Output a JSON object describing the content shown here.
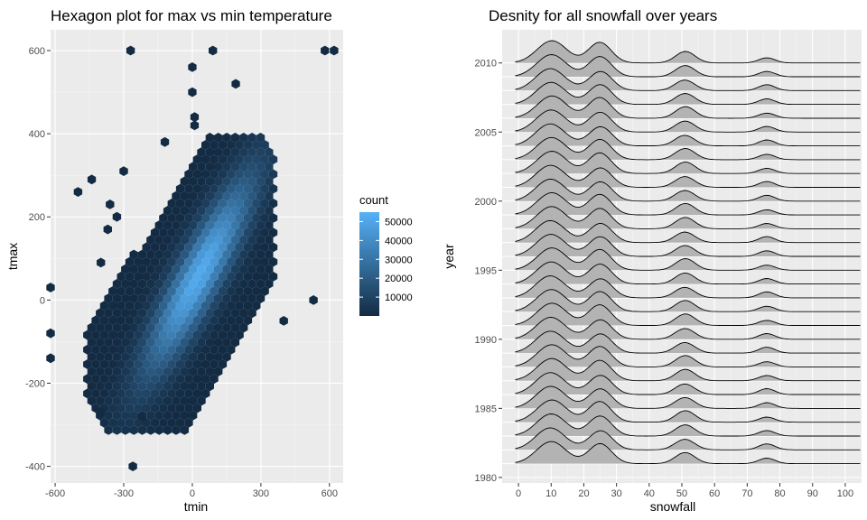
{
  "chart_data": [
    {
      "type": "hexbin",
      "title": "Hexagon plot for max vs min temperature",
      "xlabel": "tmin",
      "ylabel": "tmax",
      "xlim": [
        -620,
        660
      ],
      "ylim": [
        -440,
        650
      ],
      "x_ticks": [
        -600,
        -300,
        0,
        300,
        600
      ],
      "x_tick_labels": [
        "-600",
        "-300",
        "0",
        "300",
        "600"
      ],
      "y_ticks": [
        -400,
        -200,
        0,
        200,
        400,
        600
      ],
      "y_tick_labels": [
        "-400",
        "-200",
        "0",
        "200",
        "400",
        "600"
      ],
      "legend": {
        "title": "count",
        "position": "right",
        "range": [
          0,
          55000
        ],
        "breaks": [
          10000,
          20000,
          30000,
          40000,
          50000
        ],
        "labels": [
          "10000",
          "20000",
          "30000",
          "40000",
          "50000"
        ],
        "low_color": "#132B43",
        "high_color": "#56B1F7"
      },
      "density_ridge": {
        "center": [
          30,
          60
        ],
        "slope": 1.0,
        "peak_count": 52000,
        "along_spread": 220,
        "across_spread": 55
      },
      "outlier_points": [
        [
          -270,
          600
        ],
        [
          -620,
          30
        ],
        [
          -620,
          -80
        ],
        [
          -620,
          -140
        ],
        [
          -500,
          260
        ],
        [
          -440,
          290
        ],
        [
          -400,
          -270
        ],
        [
          -360,
          230
        ],
        [
          -330,
          200
        ],
        [
          -300,
          310
        ],
        [
          -260,
          -400
        ],
        [
          -220,
          -280
        ],
        [
          -120,
          380
        ],
        [
          0,
          560
        ],
        [
          0,
          500
        ],
        [
          10,
          440
        ],
        [
          10,
          420
        ],
        [
          90,
          600
        ],
        [
          190,
          520
        ],
        [
          530,
          0
        ],
        [
          580,
          600
        ],
        [
          620,
          600
        ],
        [
          400,
          -50
        ],
        [
          -370,
          170
        ],
        [
          -400,
          90
        ]
      ],
      "grid": true,
      "panel_background": "#EBEBEB"
    },
    {
      "type": "density_ridges",
      "title": "Desnity for all snowfall over years",
      "xlabel": "snowfall",
      "ylabel": "year",
      "xlim": [
        -5,
        105
      ],
      "x_ticks": [
        0,
        10,
        20,
        30,
        40,
        50,
        60,
        70,
        80,
        90,
        100
      ],
      "x_tick_labels": [
        "0",
        "10",
        "20",
        "30",
        "40",
        "50",
        "60",
        "70",
        "80",
        "90",
        "100"
      ],
      "y_ticks": [
        1980,
        1985,
        1990,
        1995,
        2000,
        2005,
        2010
      ],
      "y_tick_labels": [
        "1980",
        "1985",
        "1990",
        "1995",
        "2000",
        "2005",
        "2010"
      ],
      "years": [
        1981,
        1982,
        1983,
        1984,
        1985,
        1986,
        1987,
        1988,
        1989,
        1990,
        1991,
        1992,
        1993,
        1994,
        1995,
        1996,
        1997,
        1998,
        1999,
        2000,
        2001,
        2002,
        2003,
        2004,
        2005,
        2006,
        2007,
        2008,
        2009,
        2010
      ],
      "density_peaks": [
        {
          "center": 10,
          "width": 4.5,
          "height": 1.0
        },
        {
          "center": 25,
          "width": 3.5,
          "height": 0.9
        },
        {
          "center": 51,
          "width": 3.0,
          "height": 0.5
        },
        {
          "center": 76,
          "width": 2.5,
          "height": 0.25
        }
      ],
      "ridge_height_in_years": 1.6,
      "fill_color": "#B3B3B3",
      "line_color": "#000000",
      "grid": true,
      "panel_background": "#EBEBEB"
    }
  ]
}
